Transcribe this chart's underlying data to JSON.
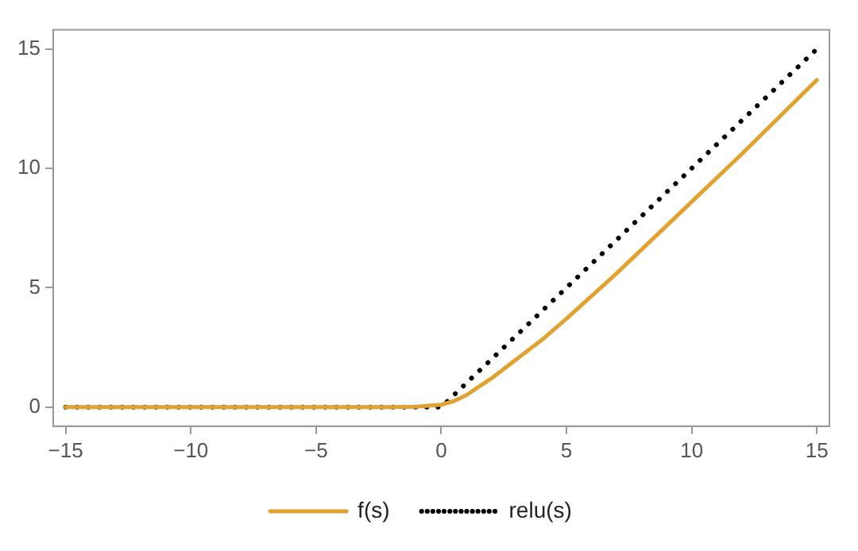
{
  "chart_data": {
    "type": "line",
    "xlim": [
      -15.5,
      15.5
    ],
    "ylim": [
      -0.8,
      15.8
    ],
    "xticks": [
      -15,
      -10,
      -5,
      0,
      5,
      10,
      15
    ],
    "yticks": [
      0,
      5,
      10,
      15
    ],
    "grid": false,
    "legend": "bottom",
    "marker": "none",
    "series": [
      {
        "name": "f(s)",
        "color": "#e0a232",
        "line_style": "solid",
        "x": [
          -15,
          -10,
          -5,
          -2,
          -1,
          0,
          0.5,
          1,
          1.5,
          2,
          3,
          4,
          5,
          7,
          10,
          12,
          15
        ],
        "values": [
          0,
          0,
          0,
          0,
          0.02,
          0.1,
          0.25,
          0.5,
          0.85,
          1.2,
          2.0,
          2.8,
          3.7,
          5.6,
          8.6,
          10.6,
          13.7
        ]
      },
      {
        "name": "relu(s)",
        "color": "#000000",
        "line_style": "dotted",
        "x": [
          -15,
          0,
          15
        ],
        "values": [
          0,
          0,
          15
        ]
      }
    ]
  }
}
